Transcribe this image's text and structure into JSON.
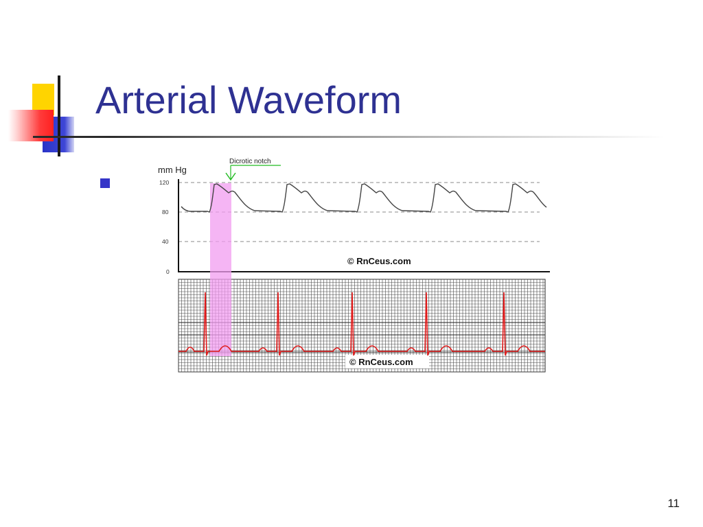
{
  "slide": {
    "title": "Arterial Waveform",
    "page_number": "11"
  },
  "figure": {
    "y_axis_label": "mm Hg",
    "y_ticks": [
      "120",
      "80",
      "40",
      "0"
    ],
    "annotation": "Dicrotic notch",
    "watermark_top": "© RnCeus.com",
    "watermark_bottom": "© RnCeus.com",
    "colors": {
      "arterial_line": "#444444",
      "ecg_line": "#e11a1a",
      "highlight": "#f29cf0",
      "annotation": "#22bb22",
      "grid": "#4a4a4a"
    }
  }
}
